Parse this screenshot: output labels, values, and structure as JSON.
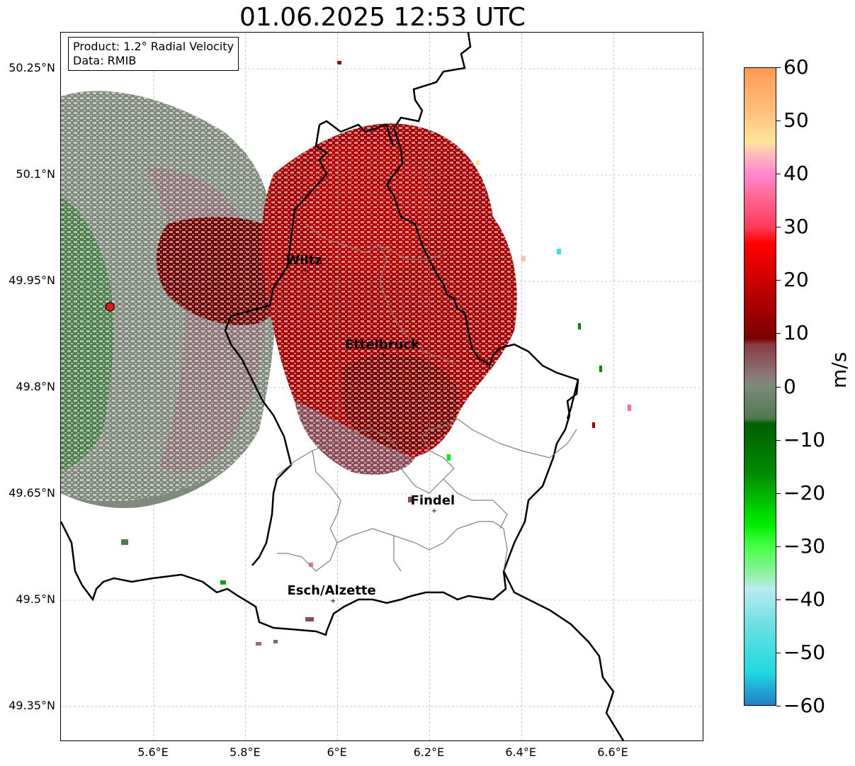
{
  "title": "01.06.2025 12:53 UTC",
  "info": {
    "product": "Product: 1.2° Radial Velocity",
    "source": "Data: RMIB"
  },
  "map": {
    "lon_range": [
      5.4,
      6.8
    ],
    "lat_range": [
      49.3,
      50.3
    ],
    "lat_ticks": [
      {
        "value": 50.25,
        "label": "50.25°N"
      },
      {
        "value": 50.1,
        "label": "50.1°N"
      },
      {
        "value": 49.95,
        "label": "49.95°N"
      },
      {
        "value": 49.8,
        "label": "49.8°N"
      },
      {
        "value": 49.65,
        "label": "49.65°N"
      },
      {
        "value": 49.5,
        "label": "49.5°N"
      },
      {
        "value": 49.35,
        "label": "49.35°N"
      }
    ],
    "lon_ticks": [
      {
        "value": 5.6,
        "label": "5.6°E"
      },
      {
        "value": 5.8,
        "label": "5.8°E"
      },
      {
        "value": 6.0,
        "label": "6°E"
      },
      {
        "value": 6.2,
        "label": "6.2°E"
      },
      {
        "value": 6.4,
        "label": "6.4°E"
      },
      {
        "value": 6.6,
        "label": "6.6°E"
      }
    ],
    "radar_site": {
      "lon": 5.505,
      "lat": 49.914,
      "color": "#e31a1c"
    },
    "cities": [
      {
        "name": "Wiltz",
        "lon": 5.93,
        "lat": 49.966
      },
      {
        "name": "Ettelbruck",
        "lon": 6.1,
        "lat": 49.847
      },
      {
        "name": "Findel",
        "lon": 6.21,
        "lat": 49.627
      },
      {
        "name": "Esch/Alzette",
        "lon": 5.99,
        "lat": 49.5
      }
    ],
    "grid": true
  },
  "colorbar": {
    "unit": "m/s",
    "min": -60,
    "max": 60,
    "ticks": [
      {
        "value": 60,
        "label": "60"
      },
      {
        "value": 50,
        "label": "50"
      },
      {
        "value": 40,
        "label": "40"
      },
      {
        "value": 30,
        "label": "30"
      },
      {
        "value": 20,
        "label": "20"
      },
      {
        "value": 10,
        "label": "10"
      },
      {
        "value": 0,
        "label": "0"
      },
      {
        "value": -10,
        "label": "−10"
      },
      {
        "value": -20,
        "label": "−20"
      },
      {
        "value": -30,
        "label": "−30"
      },
      {
        "value": -40,
        "label": "−40"
      },
      {
        "value": -50,
        "label": "−50"
      },
      {
        "value": -60,
        "label": "−60"
      }
    ],
    "stops": [
      {
        "value": 60,
        "color": "#ff9a55"
      },
      {
        "value": 52,
        "color": "#ffbf7a"
      },
      {
        "value": 46,
        "color": "#ffe49a"
      },
      {
        "value": 44,
        "color": "#ffc0b8"
      },
      {
        "value": 40,
        "color": "#ff88d0"
      },
      {
        "value": 36,
        "color": "#ff6a98"
      },
      {
        "value": 30,
        "color": "#ff3a5a"
      },
      {
        "value": 27,
        "color": "#ff0000"
      },
      {
        "value": 20,
        "color": "#cc0000"
      },
      {
        "value": 14,
        "color": "#a00000"
      },
      {
        "value": 9,
        "color": "#7a0000"
      },
      {
        "value": 8,
        "color": "#8a3a40"
      },
      {
        "value": 2,
        "color": "#8a7878"
      },
      {
        "value": 0,
        "color": "#7a8a78"
      },
      {
        "value": -6,
        "color": "#507a50"
      },
      {
        "value": -7,
        "color": "#006000"
      },
      {
        "value": -16,
        "color": "#008800"
      },
      {
        "value": -26,
        "color": "#00ee00"
      },
      {
        "value": -30,
        "color": "#44ff44"
      },
      {
        "value": -36,
        "color": "#99f0b0"
      },
      {
        "value": -38,
        "color": "#b8ecf0"
      },
      {
        "value": -46,
        "color": "#60e0e0"
      },
      {
        "value": -54,
        "color": "#20d8e0"
      },
      {
        "value": -56,
        "color": "#20b8d8"
      },
      {
        "value": -60,
        "color": "#2080c8"
      }
    ]
  }
}
